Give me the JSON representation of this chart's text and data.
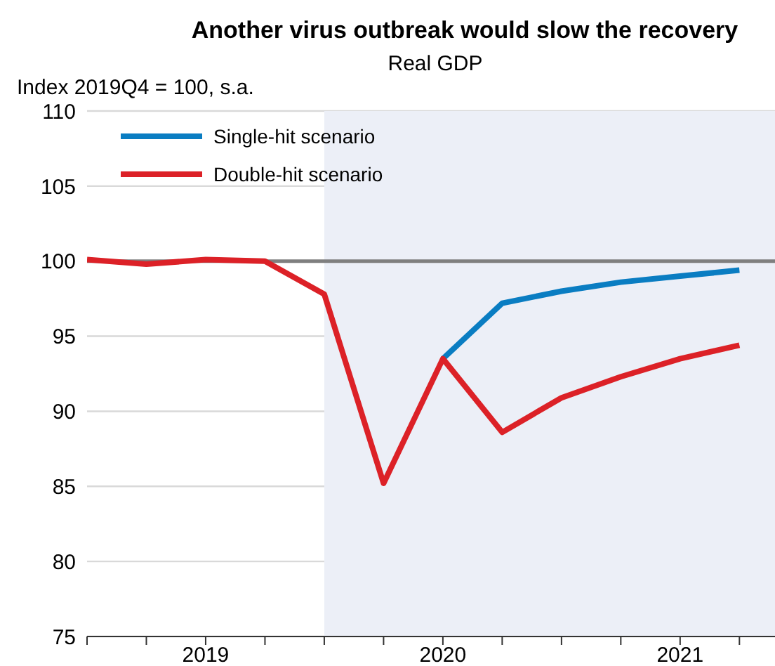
{
  "chart_data": {
    "type": "line",
    "title": "Another virus outbreak would slow the recovery",
    "subtitle": "Real GDP",
    "ylabel": "Index 2019Q4 = 100, s.a.",
    "x": [
      2019,
      2019.25,
      2019.5,
      2019.75,
      2020,
      2020.25,
      2020.5,
      2020.75,
      2021,
      2021.25,
      2021.5,
      2021.75
    ],
    "series": [
      {
        "name": "Single-hit scenario",
        "color": "#0a7dc2",
        "values": [
          null,
          null,
          null,
          null,
          null,
          null,
          93.5,
          97.2,
          98,
          98.6,
          99,
          99.4
        ]
      },
      {
        "name": "Double-hit scenario",
        "color": "#dc2127",
        "values": [
          100.1,
          99.8,
          100.1,
          100,
          97.8,
          85.2,
          93.5,
          88.6,
          90.9,
          92.3,
          93.5,
          94.4
        ]
      }
    ],
    "xlim": [
      2019,
      2021.9
    ],
    "xticks": [
      {
        "value": 2019,
        "label": null
      },
      {
        "value": 2019.25,
        "label": null
      },
      {
        "value": 2019.5,
        "label": null
      },
      {
        "value": 2019.75,
        "label": null
      },
      {
        "value": 2020,
        "label": null
      },
      {
        "value": 2020.25,
        "label": null
      },
      {
        "value": 2020.5,
        "label": null
      },
      {
        "value": 2020.75,
        "label": null
      },
      {
        "value": 2021,
        "label": null
      },
      {
        "value": 2021.25,
        "label": null
      },
      {
        "value": 2021.5,
        "label": null
      },
      {
        "value": 2021.75,
        "label": null
      },
      {
        "value": 2019.5,
        "label": "2019"
      },
      {
        "value": 2020.5,
        "label": "2020"
      },
      {
        "value": 2021.5,
        "label": "2021"
      }
    ],
    "ylim": [
      75,
      110
    ],
    "yticks": [
      75,
      80,
      85,
      90,
      95,
      100,
      105,
      110
    ],
    "grid": "y",
    "legend": "top left",
    "marker": "none",
    "line_style": "solid",
    "ref_lines": [
      {
        "axis": "y",
        "value": 100,
        "color": "#7f7f7f"
      }
    ],
    "bands": [
      {
        "axis": "x",
        "from": 2020,
        "to": 2021.9,
        "color": "#eceff7"
      }
    ]
  }
}
